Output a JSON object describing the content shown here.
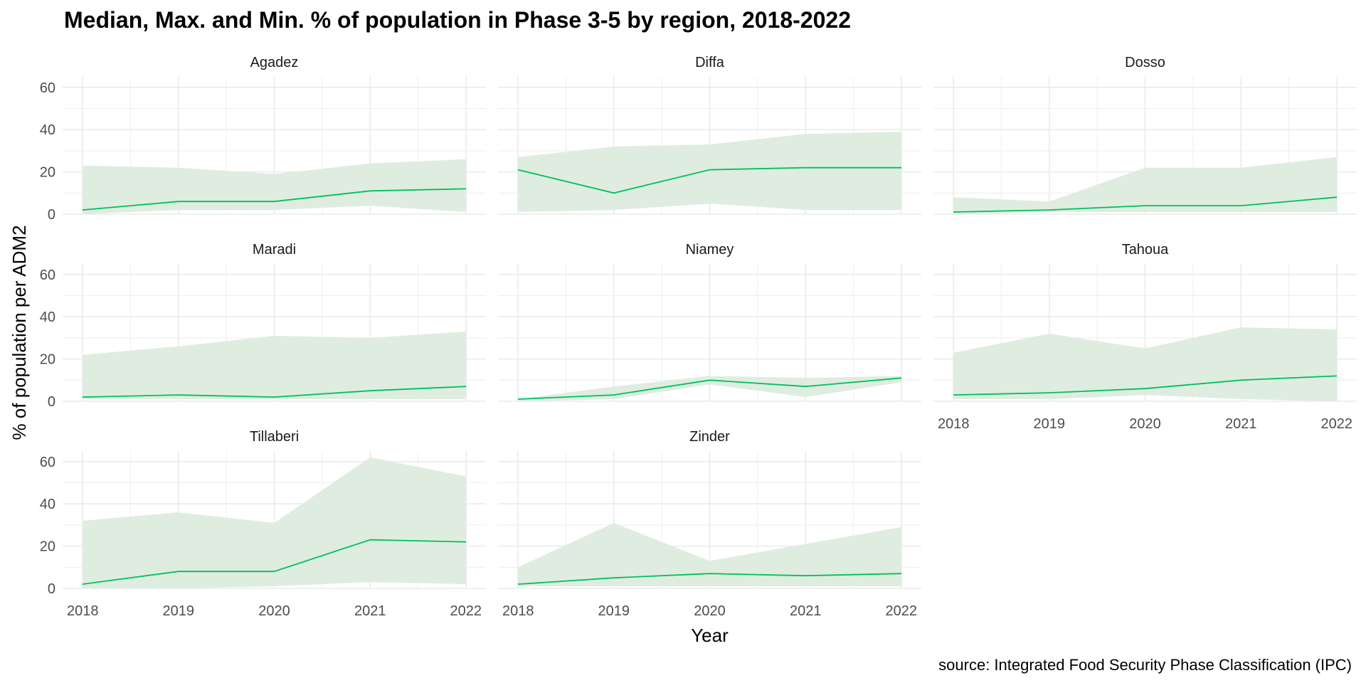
{
  "chart_data": {
    "type": "area",
    "title": "Median, Max. and Min. % of population in Phase 3-5 by region, 2018-2022",
    "xlabel": "Year",
    "ylabel": "% of population per ADM2",
    "source": "source: Integrated Food Security Phase Classification (IPC)",
    "x": [
      2018,
      2019,
      2020,
      2021,
      2022
    ],
    "x_ticks": [
      "2018",
      "2019",
      "2020",
      "2021",
      "2022"
    ],
    "y_ticks": [
      "0",
      "20",
      "40",
      "60"
    ],
    "ylim": [
      0,
      65
    ],
    "grid": true,
    "colors": {
      "band": "#deeddf",
      "median": "#00c060",
      "grid": "#ebebeb",
      "axis_text": "#4d4d4d"
    },
    "facets": [
      {
        "name": "Agadez",
        "median": [
          2,
          6,
          6,
          11,
          12
        ],
        "max": [
          23,
          22,
          19,
          24,
          26
        ],
        "min": [
          0,
          2,
          2,
          4,
          1
        ]
      },
      {
        "name": "Diffa",
        "median": [
          21,
          10,
          21,
          22,
          22
        ],
        "max": [
          27,
          32,
          33,
          38,
          39
        ],
        "min": [
          1,
          2,
          5,
          2,
          2
        ]
      },
      {
        "name": "Dosso",
        "median": [
          1,
          2,
          4,
          4,
          8
        ],
        "max": [
          8,
          6,
          22,
          22,
          27
        ],
        "min": [
          0,
          1,
          1,
          1,
          1
        ]
      },
      {
        "name": "Maradi",
        "median": [
          2,
          3,
          2,
          5,
          7
        ],
        "max": [
          22,
          26,
          31,
          30,
          33
        ],
        "min": [
          1,
          1,
          1,
          1,
          1
        ]
      },
      {
        "name": "Niamey",
        "median": [
          1,
          3,
          10,
          7,
          11
        ],
        "max": [
          1,
          7,
          12,
          11,
          12
        ],
        "min": [
          0,
          1,
          8,
          2,
          9
        ]
      },
      {
        "name": "Tahoua",
        "median": [
          3,
          4,
          6,
          10,
          12
        ],
        "max": [
          23,
          32,
          25,
          35,
          34
        ],
        "min": [
          1,
          1,
          3,
          1,
          0
        ]
      },
      {
        "name": "Tillaberi",
        "median": [
          2,
          8,
          8,
          23,
          22
        ],
        "max": [
          32,
          36,
          31,
          62,
          53
        ],
        "min": [
          0,
          0,
          1,
          3,
          2
        ]
      },
      {
        "name": "Zinder",
        "median": [
          2,
          5,
          7,
          6,
          7
        ],
        "max": [
          10,
          31,
          13,
          21,
          29
        ],
        "min": [
          1,
          1,
          1,
          1,
          1
        ]
      }
    ]
  }
}
